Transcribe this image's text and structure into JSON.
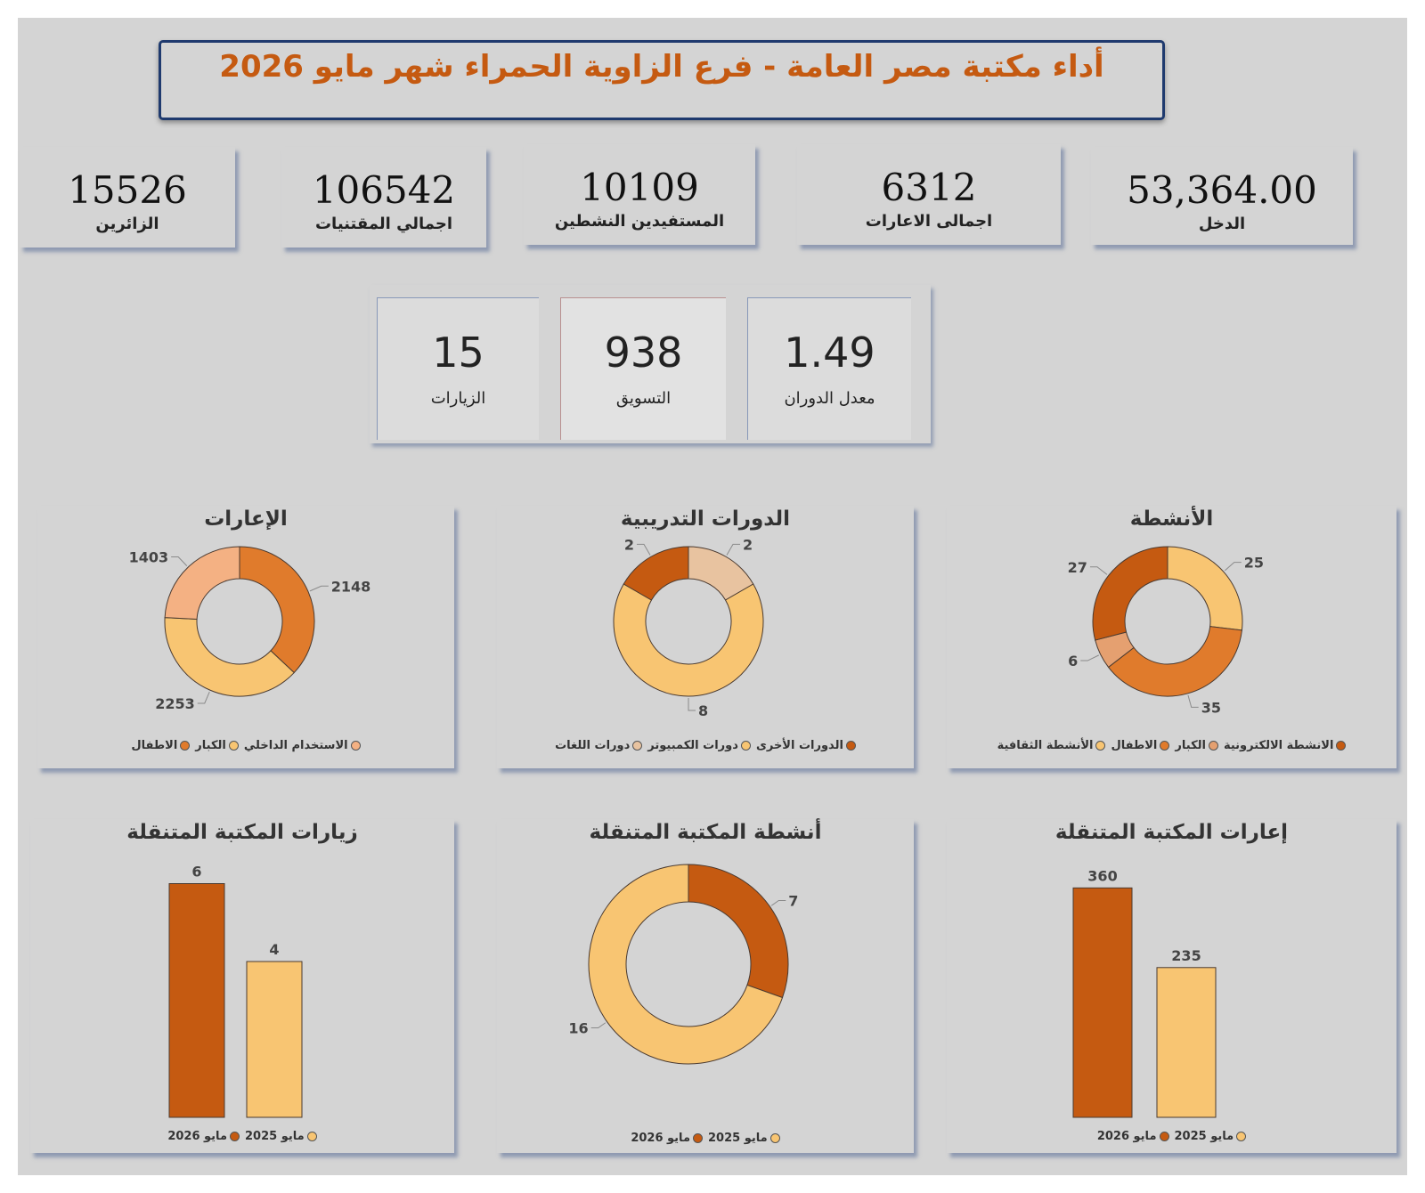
{
  "title": "أداء مكتبة مصر العامة - فرع الزاوية الحمراء شهر مايو 2026",
  "kpis": [
    {
      "value": "15526",
      "label": "الزائرين"
    },
    {
      "value": "106542",
      "label": "اجمالي المقتنيات"
    },
    {
      "value": "10109",
      "label": "المستفيدين النشطين"
    },
    {
      "value": "6312",
      "label": "اجمالى الاعارات"
    },
    {
      "value": "53,364.00",
      "label": "الدخل"
    }
  ],
  "mini_kpis": [
    {
      "value": "15",
      "label": "الزيارات"
    },
    {
      "value": "938",
      "label": "التسويق"
    },
    {
      "value": "1.49",
      "label": "معدل الدوران"
    }
  ],
  "colors": {
    "dark": "#c55a11",
    "mid": "#e07b2c",
    "light": "#f8c572",
    "peach": "#f4b183",
    "pale": "#e8c3a0",
    "tan": "#e5a070"
  },
  "chart_data": [
    {
      "id": "loans",
      "type": "pie",
      "title": "الإعارات",
      "slices": [
        {
          "name": "الاطفال",
          "value": 2148,
          "color": "#e07b2c"
        },
        {
          "name": "الكبار",
          "value": 2253,
          "color": "#f8c572"
        },
        {
          "name": "الاستخدام الداخلي",
          "value": 1403,
          "color": "#f4b183"
        }
      ]
    },
    {
      "id": "courses",
      "type": "pie",
      "title": "الدورات التدريبية",
      "slices": [
        {
          "name": "دورات اللغات",
          "value": 2,
          "color": "#e8c3a0"
        },
        {
          "name": "دورات الكمبيوتر",
          "value": 8,
          "color": "#f8c572"
        },
        {
          "name": "الدورات الأخرى",
          "value": 2,
          "color": "#c55a11"
        }
      ]
    },
    {
      "id": "activities",
      "type": "pie",
      "title": "الأنشطة",
      "slices": [
        {
          "name": "الأنشطة الثقافية",
          "value": 25,
          "color": "#f8c572"
        },
        {
          "name": "الاطفال",
          "value": 35,
          "color": "#e07b2c"
        },
        {
          "name": "الكبار",
          "value": 6,
          "color": "#e5a070"
        },
        {
          "name": "الانشطة الالكترونية",
          "value": 27,
          "color": "#c55a11"
        }
      ],
      "legend_order": [
        "الانشطة الالكترونية",
        "الكبار",
        "الاطفال",
        "الأنشطة الثقافية"
      ]
    },
    {
      "id": "mobile_visits",
      "type": "bar",
      "title": "زيارات المكتبة المتنقلة",
      "categories": [
        "مايو 2026",
        "مايو 2025"
      ],
      "values": [
        6,
        4
      ],
      "colors": [
        "#c55a11",
        "#f8c572"
      ],
      "ylim": [
        0,
        6.4
      ]
    },
    {
      "id": "mobile_activities",
      "type": "pie",
      "title": "أنشطة المكتبة المتنقلة",
      "slices": [
        {
          "name": "مايو 2026",
          "value": 7,
          "color": "#c55a11"
        },
        {
          "name": "مايو 2025",
          "value": 16,
          "color": "#f8c572"
        }
      ]
    },
    {
      "id": "mobile_loans",
      "type": "bar",
      "title": "إعارات المكتبة المتنقلة",
      "categories": [
        "مايو 2026",
        "مايو 2025"
      ],
      "values": [
        360,
        235
      ],
      "colors": [
        "#c55a11",
        "#f8c572"
      ],
      "ylim": [
        0,
        380
      ]
    }
  ]
}
